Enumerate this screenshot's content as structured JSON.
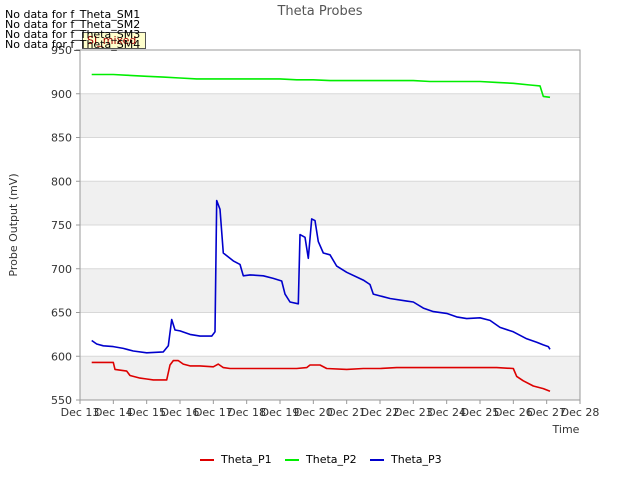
{
  "chart_data": {
    "type": "line",
    "title": "Theta Probes",
    "xlabel": "Time",
    "ylabel": "Probe Output (mV)",
    "xlim": [
      13,
      28
    ],
    "ylim": [
      550,
      950
    ],
    "x_ticks": [
      13,
      14,
      15,
      16,
      17,
      18,
      19,
      20,
      21,
      22,
      23,
      24,
      25,
      26,
      27,
      28
    ],
    "x_tick_labels": [
      "Dec 13",
      "Dec 14",
      "Dec 15",
      "Dec 16",
      "Dec 17",
      "Dec 18",
      "Dec 19",
      "Dec 20",
      "Dec 21",
      "Dec 22",
      "Dec 23",
      "Dec 24",
      "Dec 25",
      "Dec 26",
      "Dec 27",
      "Dec 28"
    ],
    "y_ticks": [
      550,
      600,
      650,
      700,
      750,
      800,
      850,
      900,
      950
    ],
    "y_tick_labels": [
      "550",
      "600",
      "650",
      "700",
      "750",
      "800",
      "850",
      "900",
      "950"
    ],
    "series": [
      {
        "name": "Theta_P1",
        "color": "#dd0000",
        "x": [
          13.35,
          14.0,
          14.05,
          14.4,
          14.5,
          14.8,
          15.0,
          15.2,
          15.6,
          15.7,
          15.8,
          15.95,
          16.1,
          16.3,
          16.6,
          17.0,
          17.15,
          17.3,
          17.5,
          18.0,
          18.5,
          19.0,
          19.5,
          19.8,
          19.9,
          20.2,
          20.4,
          21.0,
          21.5,
          22.0,
          22.5,
          23.0,
          23.5,
          24.0,
          24.5,
          25.0,
          25.5,
          26.0,
          26.1,
          26.3,
          26.6,
          26.9,
          27.1
        ],
        "y": [
          593,
          593,
          585,
          583,
          578,
          575,
          574,
          573,
          573,
          590,
          595,
          595,
          591,
          589,
          589,
          588,
          591,
          587,
          586,
          586,
          586,
          586,
          586,
          587,
          590,
          590,
          586,
          585,
          586,
          586,
          587,
          587,
          587,
          587,
          587,
          587,
          587,
          586,
          577,
          572,
          566,
          563,
          560
        ]
      },
      {
        "name": "Theta_P2",
        "color": "#00ee00",
        "x": [
          13.35,
          14.0,
          14.5,
          15.0,
          15.5,
          16.0,
          16.5,
          17.0,
          17.5,
          18.0,
          18.5,
          19.0,
          19.5,
          20.0,
          20.5,
          21.0,
          21.5,
          22.0,
          22.5,
          23.0,
          23.5,
          24.0,
          24.5,
          25.0,
          25.5,
          26.0,
          26.5,
          26.8,
          26.9,
          27.1
        ],
        "y": [
          922,
          922,
          921,
          920,
          919,
          918,
          917,
          917,
          917,
          917,
          917,
          917,
          916,
          916,
          915,
          915,
          915,
          915,
          915,
          915,
          914,
          914,
          914,
          914,
          913,
          912,
          910,
          909,
          897,
          896
        ]
      },
      {
        "name": "Theta_P3",
        "color": "#0000cc",
        "x": [
          13.35,
          13.5,
          13.7,
          14.0,
          14.3,
          14.6,
          15.0,
          15.5,
          15.65,
          15.75,
          15.85,
          16.0,
          16.3,
          16.6,
          16.95,
          17.05,
          17.1,
          17.2,
          17.3,
          17.6,
          17.8,
          17.9,
          18.1,
          18.5,
          18.8,
          19.05,
          19.15,
          19.3,
          19.55,
          19.6,
          19.75,
          19.85,
          19.95,
          20.05,
          20.15,
          20.3,
          20.5,
          20.7,
          21.0,
          21.5,
          21.7,
          21.8,
          22.3,
          22.8,
          23.0,
          23.3,
          23.6,
          24.0,
          24.3,
          24.6,
          25.0,
          25.3,
          25.6,
          26.0,
          26.4,
          26.7,
          26.9,
          27.05,
          27.1
        ],
        "y": [
          618,
          614,
          612,
          611,
          609,
          606,
          604,
          605,
          612,
          642,
          630,
          629,
          625,
          623,
          623,
          628,
          778,
          768,
          718,
          709,
          705,
          692,
          693,
          692,
          689,
          686,
          671,
          662,
          660,
          739,
          736,
          712,
          757,
          755,
          731,
          718,
          716,
          703,
          696,
          687,
          682,
          671,
          666,
          663,
          662,
          655,
          651,
          649,
          645,
          643,
          644,
          641,
          633,
          628,
          620,
          616,
          613,
          611,
          608
        ]
      }
    ],
    "legend": [
      "Theta_P1",
      "Theta_P2",
      "Theta_P3"
    ],
    "legend_position": "bottom",
    "grid": true
  },
  "nodata_lines": [
    "No data for f_Theta_SM1",
    "No data for f_Theta_SM2",
    "No data for f_Theta_SM3",
    "No data for f_Theta_SM4"
  ],
  "tag_label": "SI_mixed",
  "colors": {
    "band": "#f0f0f0",
    "grid": "#d8d8d8",
    "axis": "#999999"
  }
}
